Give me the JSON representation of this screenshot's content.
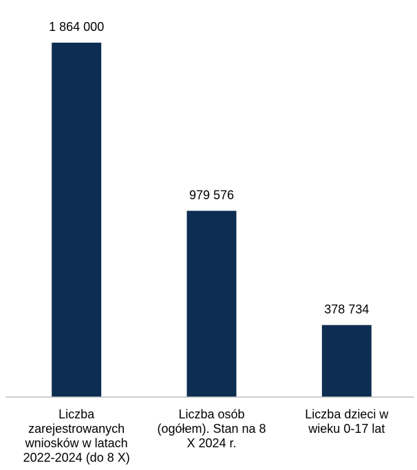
{
  "chart_data": {
    "type": "bar",
    "categories": [
      [
        "Liczba",
        "zarejestrowanych",
        "wniosków w latach",
        "2022-2024 (do 8 X)"
      ],
      [
        "Liczba osób",
        "(ogółem). Stan na 8",
        "X 2024 r."
      ],
      [
        "Liczba dzieci w",
        "wieku 0-17 lat"
      ]
    ],
    "values": [
      1864000,
      979576,
      378734
    ],
    "data_labels": [
      "1 864 000",
      "979 576",
      "378 734"
    ],
    "title": "",
    "xlabel": "",
    "ylabel": "",
    "ylim": [
      0,
      2000000
    ],
    "grid": false,
    "legend": "none",
    "colors": {
      "bar": "#0e2d52",
      "axis": "#bfbfbf"
    }
  }
}
